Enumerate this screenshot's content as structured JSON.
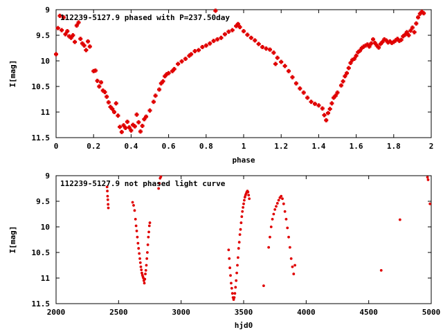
{
  "chart_data": [
    {
      "type": "scatter",
      "title": "112239-5127.9 phased with P=237.50day",
      "xlabel": "phase",
      "ylabel": "I[mag]",
      "xlim": [
        0,
        2
      ],
      "ylim": [
        9,
        11.5
      ],
      "y_inverted": true,
      "xticks": [
        "0",
        "0.2",
        "0.4",
        "0.6",
        "0.8",
        "1",
        "1.2",
        "1.4",
        "1.6",
        "1.8",
        "2"
      ],
      "yticks": [
        "9",
        "9.5",
        "10",
        "10.5",
        "11",
        "11.5"
      ],
      "grid": false,
      "marker_color": "#e00000",
      "points": [
        [
          0.0,
          9.87
        ],
        [
          0.01,
          9.36
        ],
        [
          0.02,
          9.12
        ],
        [
          0.03,
          9.4
        ],
        [
          0.04,
          9.15
        ],
        [
          0.05,
          9.48
        ],
        [
          0.06,
          9.42
        ],
        [
          0.07,
          9.52
        ],
        [
          0.08,
          9.55
        ],
        [
          0.09,
          9.5
        ],
        [
          0.1,
          9.63
        ],
        [
          0.11,
          9.31
        ],
        [
          0.12,
          9.25
        ],
        [
          0.13,
          9.57
        ],
        [
          0.14,
          9.66
        ],
        [
          0.15,
          9.7
        ],
        [
          0.16,
          9.79
        ],
        [
          0.17,
          9.62
        ],
        [
          0.18,
          9.72
        ],
        [
          0.2,
          10.2
        ],
        [
          0.21,
          10.19
        ],
        [
          0.22,
          10.39
        ],
        [
          0.23,
          10.5
        ],
        [
          0.24,
          10.42
        ],
        [
          0.25,
          10.58
        ],
        [
          0.26,
          10.61
        ],
        [
          0.27,
          10.7
        ],
        [
          0.28,
          10.81
        ],
        [
          0.29,
          10.9
        ],
        [
          0.3,
          10.94
        ],
        [
          0.31,
          11.0
        ],
        [
          0.32,
          10.83
        ],
        [
          0.33,
          11.07
        ],
        [
          0.34,
          11.29
        ],
        [
          0.35,
          11.39
        ],
        [
          0.36,
          11.26
        ],
        [
          0.37,
          11.31
        ],
        [
          0.38,
          11.19
        ],
        [
          0.39,
          11.3
        ],
        [
          0.4,
          11.36
        ],
        [
          0.41,
          11.25
        ],
        [
          0.42,
          11.28
        ],
        [
          0.43,
          11.05
        ],
        [
          0.44,
          11.2
        ],
        [
          0.45,
          11.38
        ],
        [
          0.46,
          11.27
        ],
        [
          0.47,
          11.14
        ],
        [
          0.48,
          11.09
        ],
        [
          0.5,
          10.97
        ],
        [
          0.52,
          10.8
        ],
        [
          0.53,
          10.68
        ],
        [
          0.55,
          10.56
        ],
        [
          0.56,
          10.44
        ],
        [
          0.57,
          10.4
        ],
        [
          0.58,
          10.3
        ],
        [
          0.59,
          10.26
        ],
        [
          0.6,
          10.24
        ],
        [
          0.62,
          10.2
        ],
        [
          0.63,
          10.16
        ],
        [
          0.65,
          10.06
        ],
        [
          0.67,
          10.01
        ],
        [
          0.69,
          9.96
        ],
        [
          0.71,
          9.9
        ],
        [
          0.72,
          9.87
        ],
        [
          0.74,
          9.81
        ],
        [
          0.76,
          9.79
        ],
        [
          0.78,
          9.73
        ],
        [
          0.8,
          9.7
        ],
        [
          0.82,
          9.66
        ],
        [
          0.84,
          9.61
        ],
        [
          0.85,
          9.02
        ],
        [
          0.86,
          9.58
        ],
        [
          0.88,
          9.55
        ],
        [
          0.9,
          9.48
        ],
        [
          0.92,
          9.43
        ],
        [
          0.94,
          9.4
        ],
        [
          0.96,
          9.32
        ],
        [
          0.97,
          9.28
        ],
        [
          0.98,
          9.34
        ],
        [
          1.0,
          9.42
        ],
        [
          1.02,
          9.49
        ],
        [
          1.04,
          9.55
        ],
        [
          1.06,
          9.6
        ],
        [
          1.08,
          9.67
        ],
        [
          1.1,
          9.73
        ],
        [
          1.12,
          9.76
        ],
        [
          1.14,
          9.78
        ],
        [
          1.16,
          9.84
        ],
        [
          1.17,
          10.06
        ],
        [
          1.18,
          9.94
        ],
        [
          1.2,
          10.02
        ],
        [
          1.22,
          10.1
        ],
        [
          1.24,
          10.2
        ],
        [
          1.26,
          10.32
        ],
        [
          1.28,
          10.44
        ],
        [
          1.3,
          10.54
        ],
        [
          1.32,
          10.62
        ],
        [
          1.34,
          10.72
        ],
        [
          1.36,
          10.8
        ],
        [
          1.38,
          10.84
        ],
        [
          1.4,
          10.87
        ],
        [
          1.42,
          10.93
        ],
        [
          1.43,
          11.06
        ],
        [
          1.44,
          11.16
        ],
        [
          1.45,
          11.02
        ],
        [
          1.46,
          10.94
        ],
        [
          1.47,
          10.83
        ],
        [
          1.48,
          10.72
        ],
        [
          1.49,
          10.68
        ],
        [
          1.5,
          10.62
        ],
        [
          1.52,
          10.48
        ],
        [
          1.53,
          10.4
        ],
        [
          1.54,
          10.3
        ],
        [
          1.55,
          10.24
        ],
        [
          1.56,
          10.14
        ],
        [
          1.57,
          10.04
        ],
        [
          1.58,
          9.98
        ],
        [
          1.59,
          9.96
        ],
        [
          1.6,
          9.9
        ],
        [
          1.61,
          9.83
        ],
        [
          1.62,
          9.8
        ],
        [
          1.63,
          9.75
        ],
        [
          1.64,
          9.72
        ],
        [
          1.65,
          9.7
        ],
        [
          1.66,
          9.68
        ],
        [
          1.67,
          9.72
        ],
        [
          1.68,
          9.66
        ],
        [
          1.69,
          9.58
        ],
        [
          1.7,
          9.65
        ],
        [
          1.71,
          9.7
        ],
        [
          1.72,
          9.74
        ],
        [
          1.73,
          9.67
        ],
        [
          1.74,
          9.63
        ],
        [
          1.75,
          9.58
        ],
        [
          1.76,
          9.6
        ],
        [
          1.77,
          9.64
        ],
        [
          1.78,
          9.62
        ],
        [
          1.79,
          9.65
        ],
        [
          1.8,
          9.63
        ],
        [
          1.81,
          9.6
        ],
        [
          1.82,
          9.57
        ],
        [
          1.83,
          9.61
        ],
        [
          1.84,
          9.59
        ],
        [
          1.85,
          9.52
        ],
        [
          1.86,
          9.49
        ],
        [
          1.87,
          9.44
        ],
        [
          1.88,
          9.5
        ],
        [
          1.89,
          9.41
        ],
        [
          1.9,
          9.35
        ],
        [
          1.91,
          9.44
        ],
        [
          1.92,
          9.27
        ],
        [
          1.93,
          9.15
        ],
        [
          1.94,
          9.08
        ],
        [
          1.95,
          9.04
        ],
        [
          1.96,
          9.07
        ]
      ]
    },
    {
      "type": "scatter",
      "title": "112239-5127.9 not phased light curve",
      "xlabel": "hjd0",
      "ylabel": "I[mag]",
      "xlim": [
        2000,
        5000
      ],
      "ylim": [
        9,
        11.5
      ],
      "y_inverted": true,
      "xticks": [
        "2000",
        "2500",
        "3000",
        "3500",
        "4000",
        "4500",
        "5000"
      ],
      "yticks": [
        "9",
        "9.5",
        "10",
        "10.5",
        "11",
        "11.5"
      ],
      "grid": false,
      "marker_color": "#e00000",
      "points": [
        [
          2408,
          9.22
        ],
        [
          2410,
          9.3
        ],
        [
          2412,
          9.4
        ],
        [
          2414,
          9.47
        ],
        [
          2416,
          9.56
        ],
        [
          2418,
          9.63
        ],
        [
          2612,
          9.52
        ],
        [
          2620,
          9.58
        ],
        [
          2628,
          9.68
        ],
        [
          2635,
          9.85
        ],
        [
          2640,
          9.98
        ],
        [
          2645,
          10.08
        ],
        [
          2650,
          10.2
        ],
        [
          2655,
          10.32
        ],
        [
          2660,
          10.42
        ],
        [
          2665,
          10.52
        ],
        [
          2670,
          10.62
        ],
        [
          2674,
          10.7
        ],
        [
          2678,
          10.78
        ],
        [
          2682,
          10.84
        ],
        [
          2686,
          10.9
        ],
        [
          2690,
          10.94
        ],
        [
          2694,
          10.97
        ],
        [
          2698,
          11.0
        ],
        [
          2702,
          11.05
        ],
        [
          2706,
          11.1
        ],
        [
          2710,
          11.02
        ],
        [
          2714,
          10.92
        ],
        [
          2718,
          10.85
        ],
        [
          2722,
          10.75
        ],
        [
          2726,
          10.62
        ],
        [
          2730,
          10.5
        ],
        [
          2734,
          10.35
        ],
        [
          2738,
          10.2
        ],
        [
          2742,
          10.1
        ],
        [
          2746,
          9.98
        ],
        [
          2750,
          9.92
        ],
        [
          2820,
          9.25
        ],
        [
          2826,
          9.15
        ],
        [
          2832,
          9.05
        ],
        [
          2838,
          9.02
        ],
        [
          3380,
          10.45
        ],
        [
          3385,
          10.62
        ],
        [
          3390,
          10.8
        ],
        [
          3395,
          10.95
        ],
        [
          3400,
          11.1
        ],
        [
          3405,
          11.2
        ],
        [
          3410,
          11.3
        ],
        [
          3415,
          11.38
        ],
        [
          3420,
          11.42
        ],
        [
          3425,
          11.38
        ],
        [
          3430,
          11.3
        ],
        [
          3435,
          11.18
        ],
        [
          3440,
          11.05
        ],
        [
          3445,
          10.9
        ],
        [
          3450,
          10.75
        ],
        [
          3455,
          10.6
        ],
        [
          3460,
          10.42
        ],
        [
          3465,
          10.3
        ],
        [
          3470,
          10.15
        ],
        [
          3475,
          10.05
        ],
        [
          3480,
          9.92
        ],
        [
          3485,
          9.8
        ],
        [
          3490,
          9.7
        ],
        [
          3495,
          9.62
        ],
        [
          3500,
          9.55
        ],
        [
          3505,
          9.48
        ],
        [
          3510,
          9.42
        ],
        [
          3515,
          9.38
        ],
        [
          3520,
          9.35
        ],
        [
          3525,
          9.32
        ],
        [
          3530,
          9.3
        ],
        [
          3535,
          9.32
        ],
        [
          3540,
          9.38
        ],
        [
          3545,
          9.45
        ],
        [
          3660,
          11.15
        ],
        [
          3700,
          10.4
        ],
        [
          3710,
          10.2
        ],
        [
          3720,
          10.0
        ],
        [
          3730,
          9.85
        ],
        [
          3740,
          9.75
        ],
        [
          3750,
          9.66
        ],
        [
          3760,
          9.6
        ],
        [
          3770,
          9.54
        ],
        [
          3780,
          9.48
        ],
        [
          3790,
          9.43
        ],
        [
          3800,
          9.4
        ],
        [
          3810,
          9.45
        ],
        [
          3820,
          9.55
        ],
        [
          3830,
          9.7
        ],
        [
          3840,
          9.85
        ],
        [
          3850,
          10.02
        ],
        [
          3860,
          10.2
        ],
        [
          3870,
          10.4
        ],
        [
          3880,
          10.62
        ],
        [
          3890,
          10.78
        ],
        [
          3900,
          10.92
        ],
        [
          3910,
          10.75
        ],
        [
          4600,
          10.85
        ],
        [
          4750,
          9.86
        ],
        [
          4970,
          9.03
        ],
        [
          4975,
          9.08
        ],
        [
          4990,
          9.55
        ]
      ]
    }
  ]
}
